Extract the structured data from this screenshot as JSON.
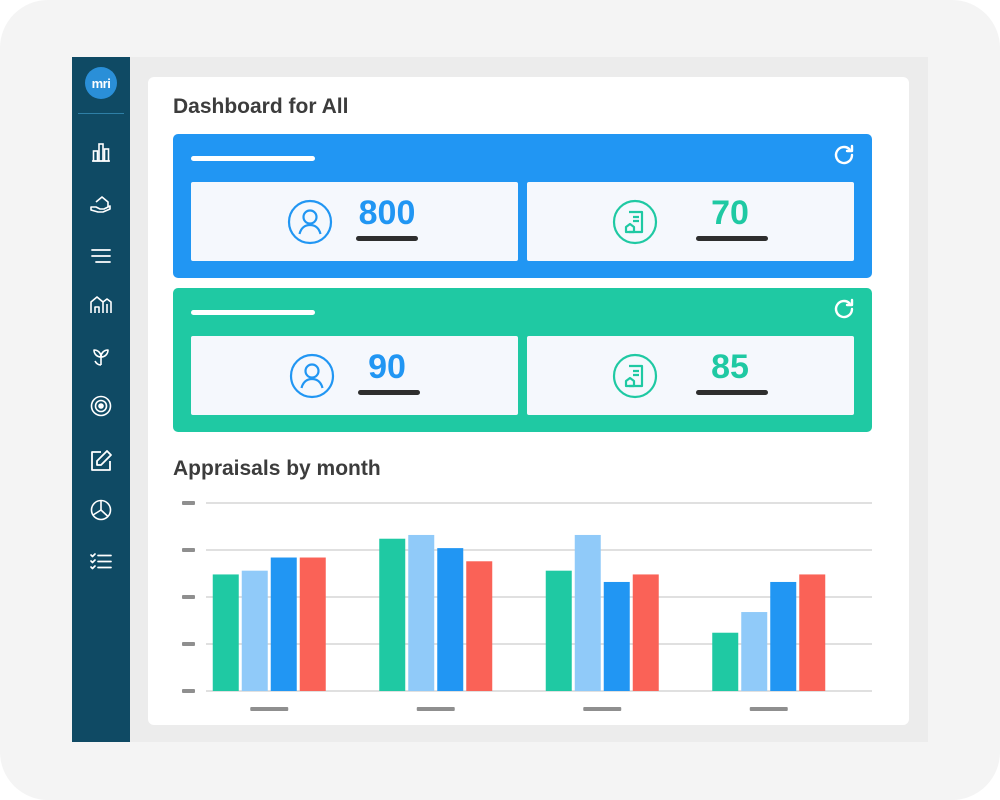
{
  "app": {
    "logo_text": "mri"
  },
  "sidebar": {
    "items": [
      {
        "name": "bar-chart-icon"
      },
      {
        "name": "hand-house-icon"
      },
      {
        "name": "menu-icon"
      },
      {
        "name": "buildings-icon"
      },
      {
        "name": "leaf-icon"
      },
      {
        "name": "target-icon"
      },
      {
        "name": "edit-icon"
      },
      {
        "name": "pie-chart-icon"
      },
      {
        "name": "checklist-icon"
      }
    ]
  },
  "dashboard": {
    "title": "Dashboard for All",
    "groups": [
      {
        "color": "#2196f3",
        "cards": [
          {
            "icon": "user-icon",
            "value": "800"
          },
          {
            "icon": "document-house-icon",
            "value": "70"
          }
        ]
      },
      {
        "color": "#1fc9a3",
        "cards": [
          {
            "icon": "user-icon",
            "value": "90"
          },
          {
            "icon": "document-house-icon",
            "value": "85"
          }
        ]
      }
    ]
  },
  "chart_title": "Appraisals by month",
  "chart_data": {
    "type": "bar",
    "categories": [
      "",
      "",
      "",
      ""
    ],
    "series": [
      {
        "color": "#1fc9a3",
        "values": [
          62,
          81,
          64,
          31
        ]
      },
      {
        "color": "#90caf9",
        "values": [
          64,
          83,
          83,
          42
        ]
      },
      {
        "color": "#2196f3",
        "values": [
          71,
          76,
          58,
          58
        ]
      },
      {
        "color": "#fa6257",
        "values": [
          71,
          69,
          62,
          62
        ]
      }
    ],
    "ylim": [
      0,
      100
    ],
    "yticks": [
      0,
      25,
      50,
      75,
      100
    ],
    "grid": true,
    "legend": "none"
  }
}
